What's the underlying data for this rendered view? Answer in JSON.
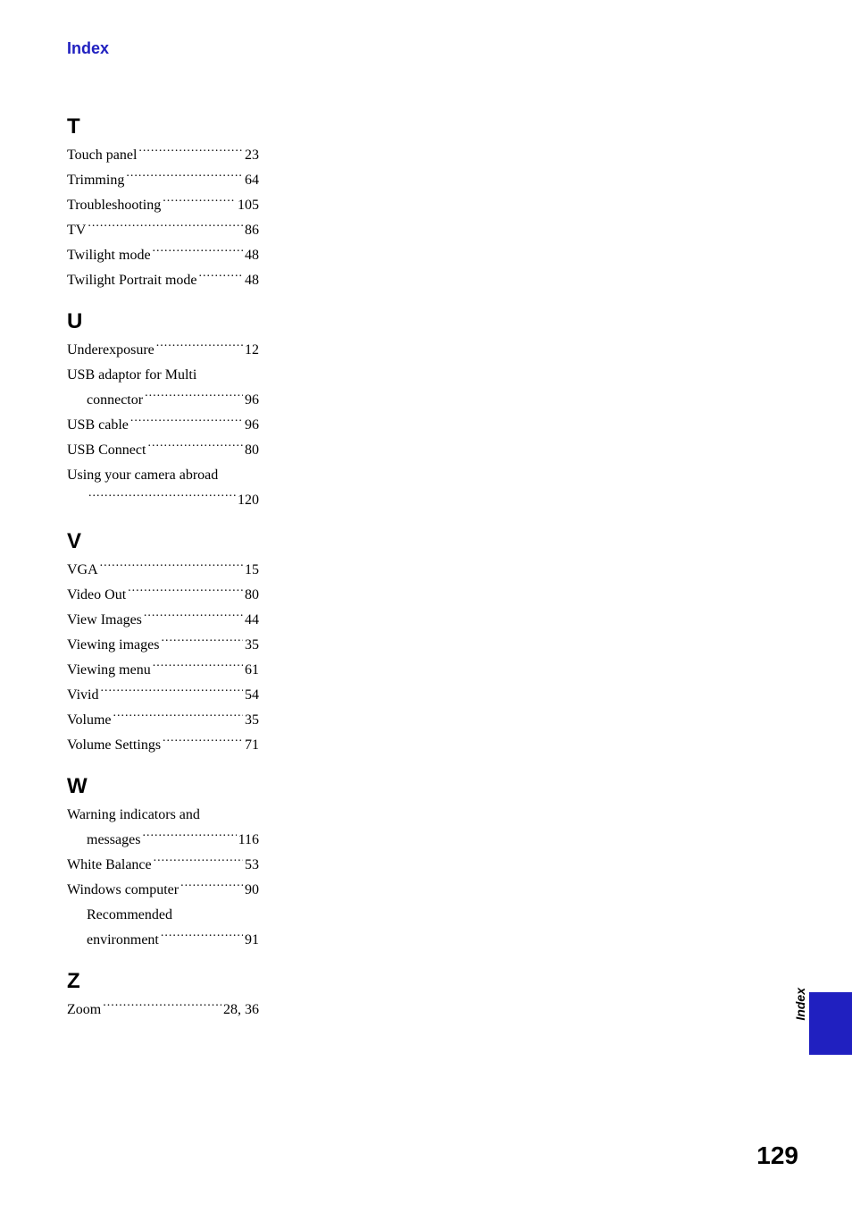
{
  "header": "Index",
  "sideTab": "Index",
  "pageNumber": "129",
  "sections": [
    {
      "letter": "T",
      "entries": [
        {
          "term": "Touch panel",
          "page": "23"
        },
        {
          "term": "Trimming",
          "page": "64"
        },
        {
          "term": "Troubleshooting",
          "page": "105"
        },
        {
          "term": "TV",
          "page": "86"
        },
        {
          "term": "Twilight mode",
          "page": "48"
        },
        {
          "term": "Twilight Portrait mode",
          "page": "48"
        }
      ]
    },
    {
      "letter": "U",
      "entries": [
        {
          "term": "Underexposure",
          "page": "12"
        },
        {
          "term": "USB adaptor for Multi",
          "secondLine": "connector",
          "page": "96",
          "wrap": true
        },
        {
          "term": "USB cable",
          "page": "96"
        },
        {
          "term": "USB Connect",
          "page": "80"
        },
        {
          "term": "Using your camera abroad",
          "secondLine": "",
          "page": "120",
          "wrap": true
        }
      ]
    },
    {
      "letter": "V",
      "entries": [
        {
          "term": "VGA",
          "page": "15"
        },
        {
          "term": "Video Out",
          "page": "80"
        },
        {
          "term": "View Images",
          "page": "44"
        },
        {
          "term": "Viewing images",
          "page": "35"
        },
        {
          "term": "Viewing menu",
          "page": "61"
        },
        {
          "term": "Vivid",
          "page": "54"
        },
        {
          "term": "Volume",
          "page": "35"
        },
        {
          "term": "Volume Settings",
          "page": "71"
        }
      ]
    },
    {
      "letter": "W",
      "entries": [
        {
          "term": "Warning indicators and",
          "secondLine": "messages",
          "page": "116",
          "wrap": true
        },
        {
          "term": "White Balance",
          "page": "53"
        },
        {
          "term": "Windows computer",
          "page": "90"
        },
        {
          "term": "Recommended",
          "secondLine": "environment",
          "page": "91",
          "wrap": true,
          "sub": true
        }
      ]
    },
    {
      "letter": "Z",
      "entries": [
        {
          "term": "Zoom",
          "page": "28, 36"
        }
      ]
    }
  ],
  "colors": {
    "blue": "#2020c0",
    "black": "#000000",
    "background": "#ffffff"
  }
}
